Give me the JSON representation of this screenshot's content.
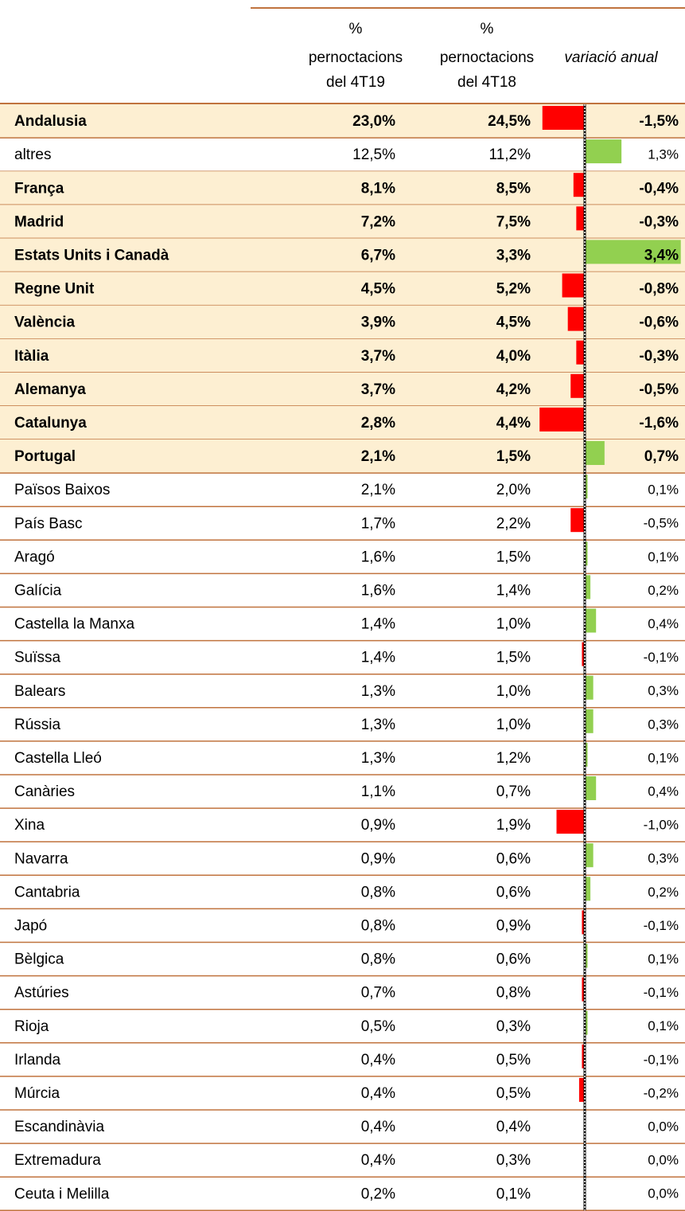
{
  "table": {
    "headers": [
      [
        "%",
        "pernoctacions",
        "del 4T19"
      ],
      [
        "%",
        "pernoctacions",
        "del 4T18"
      ],
      [
        "variació anual"
      ]
    ],
    "negative_color": "#ff0000",
    "positive_color": "#92d050",
    "highlight_color": "#fdefd2",
    "rows": [
      {
        "label": "Andalusia",
        "pct_4t19": "23,0%",
        "pct_4t18": "24,5%",
        "variation": -1.5,
        "variation_label": "-1,5%",
        "highlight": true
      },
      {
        "label": "altres",
        "pct_4t19": "12,5%",
        "pct_4t18": "11,2%",
        "variation": 1.3,
        "variation_label": "1,3%",
        "highlight": false
      },
      {
        "label": "França",
        "pct_4t19": "8,1%",
        "pct_4t18": "8,5%",
        "variation": -0.4,
        "variation_label": "-0,4%",
        "highlight": true
      },
      {
        "label": "Madrid",
        "pct_4t19": "7,2%",
        "pct_4t18": "7,5%",
        "variation": -0.3,
        "variation_label": "-0,3%",
        "highlight": true
      },
      {
        "label": "Estats Units i Canadà",
        "pct_4t19": "6,7%",
        "pct_4t18": "3,3%",
        "variation": 3.4,
        "variation_label": "3,4%",
        "highlight": true
      },
      {
        "label": "Regne Unit",
        "pct_4t19": "4,5%",
        "pct_4t18": "5,2%",
        "variation": -0.8,
        "variation_label": "-0,8%",
        "highlight": true
      },
      {
        "label": "València",
        "pct_4t19": "3,9%",
        "pct_4t18": "4,5%",
        "variation": -0.6,
        "variation_label": "-0,6%",
        "highlight": true
      },
      {
        "label": "Itàlia",
        "pct_4t19": "3,7%",
        "pct_4t18": "4,0%",
        "variation": -0.3,
        "variation_label": "-0,3%",
        "highlight": true
      },
      {
        "label": "Alemanya",
        "pct_4t19": "3,7%",
        "pct_4t18": "4,2%",
        "variation": -0.5,
        "variation_label": "-0,5%",
        "highlight": true
      },
      {
        "label": "Catalunya",
        "pct_4t19": "2,8%",
        "pct_4t18": "4,4%",
        "variation": -1.6,
        "variation_label": "-1,6%",
        "highlight": true
      },
      {
        "label": "Portugal",
        "pct_4t19": "2,1%",
        "pct_4t18": "1,5%",
        "variation": 0.7,
        "variation_label": "0,7%",
        "highlight": true
      },
      {
        "label": "Països Baixos",
        "pct_4t19": "2,1%",
        "pct_4t18": "2,0%",
        "variation": 0.1,
        "variation_label": "0,1%",
        "highlight": false
      },
      {
        "label": "País Basc",
        "pct_4t19": "1,7%",
        "pct_4t18": "2,2%",
        "variation": -0.5,
        "variation_label": "-0,5%",
        "highlight": false
      },
      {
        "label": "Aragó",
        "pct_4t19": "1,6%",
        "pct_4t18": "1,5%",
        "variation": 0.1,
        "variation_label": "0,1%",
        "highlight": false
      },
      {
        "label": "Galícia",
        "pct_4t19": "1,6%",
        "pct_4t18": "1,4%",
        "variation": 0.2,
        "variation_label": "0,2%",
        "highlight": false
      },
      {
        "label": "Castella la Manxa",
        "pct_4t19": "1,4%",
        "pct_4t18": "1,0%",
        "variation": 0.4,
        "variation_label": "0,4%",
        "highlight": false
      },
      {
        "label": "Suïssa",
        "pct_4t19": "1,4%",
        "pct_4t18": "1,5%",
        "variation": -0.1,
        "variation_label": "-0,1%",
        "highlight": false
      },
      {
        "label": "Balears",
        "pct_4t19": "1,3%",
        "pct_4t18": "1,0%",
        "variation": 0.3,
        "variation_label": "0,3%",
        "highlight": false
      },
      {
        "label": "Rússia",
        "pct_4t19": "1,3%",
        "pct_4t18": "1,0%",
        "variation": 0.3,
        "variation_label": "0,3%",
        "highlight": false
      },
      {
        "label": "Castella Lleó",
        "pct_4t19": "1,3%",
        "pct_4t18": "1,2%",
        "variation": 0.1,
        "variation_label": "0,1%",
        "highlight": false
      },
      {
        "label": "Canàries",
        "pct_4t19": "1,1%",
        "pct_4t18": "0,7%",
        "variation": 0.4,
        "variation_label": "0,4%",
        "highlight": false
      },
      {
        "label": "Xina",
        "pct_4t19": "0,9%",
        "pct_4t18": "1,9%",
        "variation": -1.0,
        "variation_label": "-1,0%",
        "highlight": false
      },
      {
        "label": "Navarra",
        "pct_4t19": "0,9%",
        "pct_4t18": "0,6%",
        "variation": 0.3,
        "variation_label": "0,3%",
        "highlight": false
      },
      {
        "label": "Cantabria",
        "pct_4t19": "0,8%",
        "pct_4t18": "0,6%",
        "variation": 0.2,
        "variation_label": "0,2%",
        "highlight": false
      },
      {
        "label": "Japó",
        "pct_4t19": "0,8%",
        "pct_4t18": "0,9%",
        "variation": -0.1,
        "variation_label": "-0,1%",
        "highlight": false
      },
      {
        "label": "Bèlgica",
        "pct_4t19": "0,8%",
        "pct_4t18": "0,6%",
        "variation": 0.1,
        "variation_label": "0,1%",
        "highlight": false
      },
      {
        "label": "Astúries",
        "pct_4t19": "0,7%",
        "pct_4t18": "0,8%",
        "variation": -0.1,
        "variation_label": "-0,1%",
        "highlight": false
      },
      {
        "label": "Rioja",
        "pct_4t19": "0,5%",
        "pct_4t18": "0,3%",
        "variation": 0.1,
        "variation_label": "0,1%",
        "highlight": false
      },
      {
        "label": "Irlanda",
        "pct_4t19": "0,4%",
        "pct_4t18": "0,5%",
        "variation": -0.1,
        "variation_label": "-0,1%",
        "highlight": false
      },
      {
        "label": "Múrcia",
        "pct_4t19": "0,4%",
        "pct_4t18": "0,5%",
        "variation": -0.2,
        "variation_label": "-0,2%",
        "highlight": false
      },
      {
        "label": "Escandinàvia",
        "pct_4t19": "0,4%",
        "pct_4t18": "0,4%",
        "variation": 0.0,
        "variation_label": "0,0%",
        "highlight": false
      },
      {
        "label": "Extremadura",
        "pct_4t19": "0,4%",
        "pct_4t18": "0,3%",
        "variation": 0.0,
        "variation_label": "0,0%",
        "highlight": false
      },
      {
        "label": "Ceuta i Melilla",
        "pct_4t19": "0,2%",
        "pct_4t18": "0,1%",
        "variation": 0.0,
        "variation_label": "0,0%",
        "highlight": false
      }
    ]
  }
}
